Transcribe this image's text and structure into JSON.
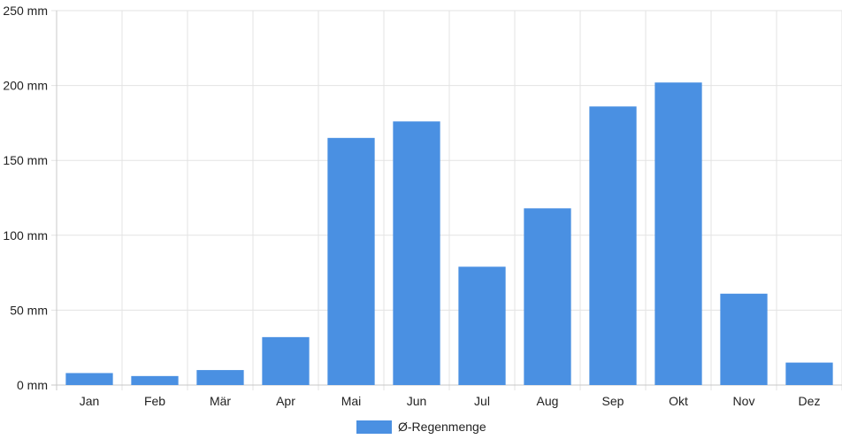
{
  "chart_data": {
    "type": "bar",
    "categories": [
      "Jan",
      "Feb",
      "Mär",
      "Apr",
      "Mai",
      "Jun",
      "Jul",
      "Aug",
      "Sep",
      "Okt",
      "Nov",
      "Dez"
    ],
    "series": [
      {
        "name": "Ø-Regenmenge",
        "values": [
          8,
          6,
          10,
          32,
          165,
          176,
          79,
          118,
          186,
          202,
          61,
          15
        ],
        "color": "#4a90e2"
      }
    ],
    "y_unit": "mm",
    "ylim": [
      0,
      250
    ],
    "y_ticks": [
      "0 mm",
      "50 mm",
      "100 mm",
      "150 mm",
      "200 mm",
      "250 mm"
    ],
    "grid": true,
    "legend_position": "bottom-center",
    "legend_label": "Ø-Regenmenge"
  }
}
